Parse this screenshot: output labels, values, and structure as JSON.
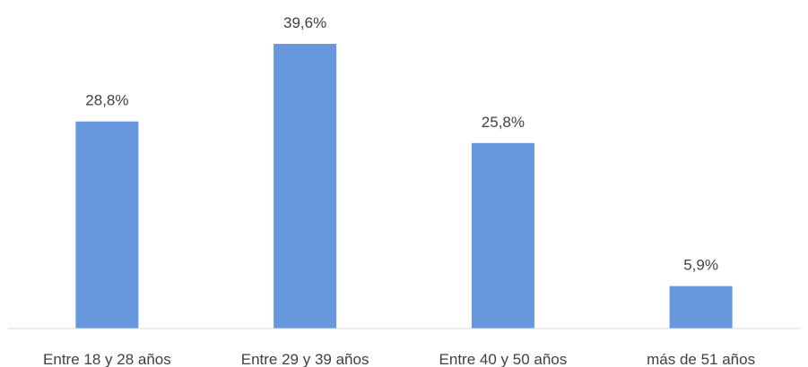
{
  "chart_data": {
    "type": "bar",
    "categories": [
      "Entre 18 y 28 años",
      "Entre 29 y 39 años",
      "Entre 40 y 50 años",
      "más de 51 años"
    ],
    "values": [
      28.8,
      39.6,
      25.8,
      5.9
    ],
    "value_labels": [
      "28,8%",
      "39,6%",
      "25,8%",
      "5,9%"
    ],
    "unit": "%",
    "ylim": [
      0,
      45
    ],
    "grid": false,
    "legend": "none",
    "colors": {
      "bar": "#6797dc",
      "axis": "#d9d9d9",
      "text": "#404040"
    }
  }
}
